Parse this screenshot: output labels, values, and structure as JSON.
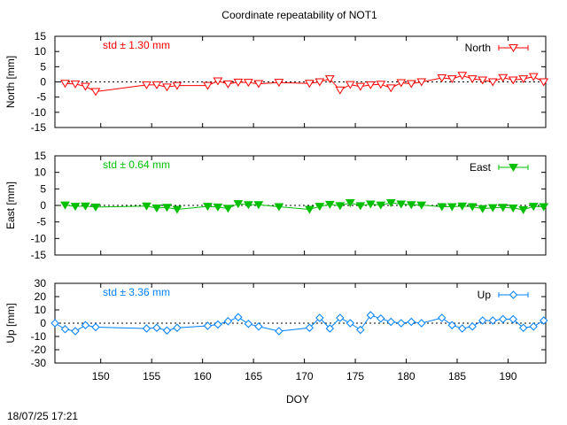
{
  "chart_data": {
    "title": "Coordinate repeatability of NOT1",
    "xlabel": "DOY",
    "xlim": [
      145.5,
      193.7
    ],
    "xticks": [
      150,
      155,
      160,
      165,
      170,
      175,
      180,
      185,
      190
    ],
    "timestamp": "18/07/25 17:21",
    "panels": [
      {
        "type": "line",
        "name": "north",
        "ylabel": "North [mm]",
        "ylim": [
          -15,
          15
        ],
        "yticks": [
          15,
          10,
          5,
          0,
          -5,
          -10,
          -15
        ],
        "std_label": "std ± 1.30 mm",
        "legend": "North",
        "color": "#ff0000",
        "marker": "triangle-down-open",
        "x": [
          146.5,
          147.5,
          148.5,
          149.5,
          154.5,
          155.5,
          156.5,
          157.5,
          160.5,
          161.5,
          162.5,
          163.5,
          164.5,
          165.5,
          167.5,
          170.5,
          171.5,
          172.5,
          173.5,
          174.5,
          175.5,
          176.5,
          177.5,
          178.5,
          179.5,
          180.5,
          181.5,
          183.5,
          184.5,
          185.5,
          186.5,
          187.5,
          188.5,
          189.5,
          190.5,
          191.5,
          192.5,
          193.5
        ],
        "y": [
          -0.5,
          -0.7,
          -1.5,
          -3.2,
          -1.0,
          -1.0,
          -1.7,
          -1.2,
          -1.2,
          0.3,
          -0.7,
          -0.1,
          -0.2,
          -0.6,
          -0.2,
          -0.5,
          0.0,
          1.0,
          -2.7,
          -0.9,
          -1.5,
          -1.0,
          -0.8,
          -2.0,
          -0.3,
          -0.6,
          0.0,
          1.3,
          1.0,
          2.1,
          1.0,
          0.6,
          0.0,
          1.4,
          0.6,
          1.0,
          1.7,
          0.0
        ]
      },
      {
        "type": "line",
        "name": "east",
        "ylabel": "East [mm]",
        "ylim": [
          -15,
          15
        ],
        "yticks": [
          15,
          10,
          5,
          0,
          -5,
          -10,
          -15
        ],
        "std_label": "std ± 0.64 mm",
        "legend": "East",
        "color": "#00c000",
        "marker": "triangle-down-filled",
        "x": [
          146.5,
          147.5,
          148.5,
          149.5,
          154.5,
          155.5,
          156.5,
          157.5,
          160.5,
          161.5,
          162.5,
          163.5,
          164.5,
          165.5,
          167.5,
          170.5,
          171.5,
          172.5,
          173.5,
          174.5,
          175.5,
          176.5,
          177.5,
          178.5,
          179.5,
          180.5,
          181.5,
          183.5,
          184.5,
          185.5,
          186.5,
          187.5,
          188.5,
          189.5,
          190.5,
          191.5,
          192.5,
          193.5
        ],
        "y": [
          0.1,
          -0.3,
          -0.2,
          -0.5,
          -0.2,
          -0.8,
          -0.6,
          -1.2,
          -0.3,
          -0.5,
          -0.9,
          0.5,
          0.2,
          0.2,
          -0.4,
          -1.2,
          -0.3,
          0.3,
          -0.1,
          0.8,
          -0.1,
          0.4,
          0.1,
          0.8,
          0.4,
          0.2,
          0.1,
          -0.4,
          -0.4,
          -0.2,
          -0.4,
          -1.0,
          -0.7,
          -0.6,
          -0.8,
          -1.3,
          -0.3,
          -0.4
        ]
      },
      {
        "type": "line",
        "name": "up",
        "ylabel": "Up [mm]",
        "ylim": [
          -30,
          30
        ],
        "yticks": [
          30,
          20,
          10,
          0,
          -10,
          -20,
          -30
        ],
        "std_label": "std ± 3.36 mm",
        "legend": "Up",
        "color": "#0080ff",
        "marker": "diamond-open",
        "x": [
          145.5,
          146.5,
          147.5,
          148.5,
          149.5,
          154.5,
          155.5,
          156.5,
          157.5,
          160.5,
          161.5,
          162.5,
          163.5,
          164.5,
          165.5,
          167.5,
          170.5,
          171.5,
          172.5,
          173.5,
          174.5,
          175.5,
          176.5,
          177.5,
          178.5,
          179.5,
          180.5,
          181.5,
          183.5,
          184.5,
          185.5,
          186.5,
          187.5,
          188.5,
          189.5,
          190.5,
          191.5,
          192.5,
          193.5
        ],
        "y": [
          0.0,
          -4.5,
          -6.0,
          -1.5,
          -3.0,
          -4.0,
          -3.5,
          -5.5,
          -3.5,
          -2.0,
          -1.0,
          1.5,
          4.5,
          -0.5,
          -2.5,
          -6.0,
          -3.5,
          4.0,
          -4.0,
          4.0,
          0.0,
          -5.0,
          6.0,
          3.5,
          1.0,
          0.0,
          1.0,
          0.0,
          4.0,
          -1.5,
          -4.0,
          -2.5,
          2.0,
          2.0,
          3.0,
          3.0,
          -3.5,
          -2.5,
          2.0
        ]
      }
    ]
  }
}
